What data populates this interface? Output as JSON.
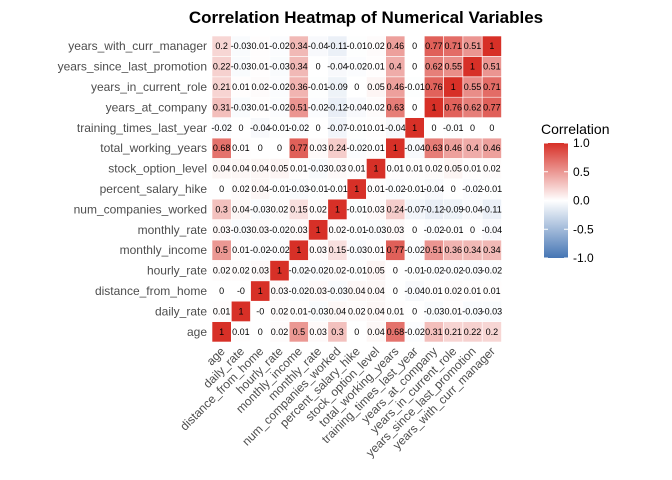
{
  "chart_data": {
    "type": "heatmap",
    "title": "Correlation Heatmap of Numerical Variables",
    "variables": [
      "age",
      "daily_rate",
      "distance_from_home",
      "hourly_rate",
      "monthly_income",
      "monthly_rate",
      "num_companies_worked",
      "percent_salary_hike",
      "stock_option_level",
      "total_working_years",
      "training_times_last_year",
      "years_at_company",
      "years_in_current_role",
      "years_since_last_promotion",
      "years_with_curr_manager"
    ],
    "matrix": [
      [
        1,
        0.01,
        0,
        0.02,
        0.5,
        0.03,
        0.3,
        0,
        0.04,
        0.68,
        -0.02,
        0.31,
        0.21,
        0.22,
        0.2
      ],
      [
        0.01,
        1,
        -0.0,
        0.02,
        0.01,
        -0.03,
        0.04,
        0.02,
        0.04,
        0.01,
        0,
        -0.03,
        0.01,
        -0.03,
        -0.03
      ],
      [
        0,
        -0.0,
        1,
        0.03,
        -0.02,
        0.03,
        -0.03,
        0.04,
        0.04,
        0,
        -0.04,
        0.01,
        0.02,
        0.01,
        0.01
      ],
      [
        0.02,
        0.02,
        0.03,
        1,
        -0.02,
        -0.02,
        0.02,
        -0.01,
        0.05,
        0,
        -0.01,
        -0.02,
        -0.02,
        -0.03,
        -0.02
      ],
      [
        0.5,
        0.01,
        -0.02,
        -0.02,
        1,
        0.03,
        0.15,
        -0.03,
        0.01,
        0.77,
        -0.02,
        0.51,
        0.36,
        0.34,
        0.34
      ],
      [
        0.03,
        -0.03,
        0.03,
        -0.02,
        0.03,
        1,
        0.02,
        -0.01,
        -0.03,
        0.03,
        0,
        -0.02,
        -0.01,
        0,
        -0.04
      ],
      [
        0.3,
        0.04,
        -0.03,
        0.02,
        0.15,
        0.02,
        1,
        -0.01,
        0.03,
        0.24,
        -0.07,
        -0.12,
        -0.09,
        -0.04,
        -0.11
      ],
      [
        0,
        0.02,
        0.04,
        -0.01,
        -0.03,
        -0.01,
        -0.01,
        1,
        0.01,
        -0.02,
        -0.01,
        -0.04,
        0,
        -0.02,
        -0.01
      ],
      [
        0.04,
        0.04,
        0.04,
        0.05,
        0.01,
        -0.03,
        0.03,
        0.01,
        1,
        0.01,
        0.01,
        0.02,
        0.05,
        0.01,
        0.02
      ],
      [
        0.68,
        0.01,
        0,
        0,
        0.77,
        0.03,
        0.24,
        -0.02,
        0.01,
        1,
        -0.04,
        0.63,
        0.46,
        0.4,
        0.46
      ],
      [
        -0.02,
        0,
        -0.04,
        -0.01,
        -0.02,
        0,
        -0.07,
        -0.01,
        0.01,
        -0.04,
        1,
        0,
        -0.01,
        0,
        0
      ],
      [
        0.31,
        -0.03,
        0.01,
        -0.02,
        0.51,
        -0.02,
        -0.12,
        -0.04,
        0.02,
        0.63,
        0,
        1,
        0.76,
        0.62,
        0.77
      ],
      [
        0.21,
        0.01,
        0.02,
        -0.02,
        0.36,
        -0.01,
        -0.09,
        0,
        0.05,
        0.46,
        -0.01,
        0.76,
        1,
        0.55,
        0.71
      ],
      [
        0.22,
        -0.03,
        0.01,
        -0.03,
        0.34,
        0,
        -0.04,
        -0.02,
        0.01,
        0.4,
        0,
        0.62,
        0.55,
        1,
        0.51
      ],
      [
        0.2,
        -0.03,
        0.01,
        -0.02,
        0.34,
        -0.04,
        -0.11,
        -0.01,
        0.02,
        0.46,
        0,
        0.77,
        0.71,
        0.51,
        1
      ]
    ],
    "display_labels": [
      [
        "1",
        "0.01",
        "0",
        "0.02",
        "0.5",
        "0.03",
        "0.3",
        "0",
        "0.04",
        "0.68",
        "-0.02",
        "0.31",
        "0.21",
        "0.22",
        "0.2"
      ],
      [
        "0.01",
        "1",
        "-0",
        "0.02",
        "0.01",
        "-0.03",
        "0.04",
        "0.02",
        "0.04",
        "0.01",
        "0",
        "-0.03",
        "0.01",
        "-0.03",
        "-0.03"
      ],
      [
        "0",
        "-0",
        "1",
        "0.03",
        "-0.02",
        "0.03",
        "-0.03",
        "0.04",
        "0.04",
        "0",
        "-0.04",
        "0.01",
        "0.02",
        "0.01",
        "0.01"
      ],
      [
        "0.02",
        "0.02",
        "0.03",
        "1",
        "-0.02",
        "-0.02",
        "0.02",
        "-0.01",
        "0.05",
        "0",
        "-0.01",
        "-0.02",
        "-0.02",
        "-0.03",
        "-0.02"
      ],
      [
        "0.5",
        "0.01",
        "-0.02",
        "-0.02",
        "1",
        "0.03",
        "0.15",
        "-0.03",
        "0.01",
        "0.77",
        "-0.02",
        "0.51",
        "0.36",
        "0.34",
        "0.34"
      ],
      [
        "0.03",
        "-0.03",
        "0.03",
        "-0.02",
        "0.03",
        "1",
        "0.02",
        "-0.01",
        "-0.03",
        "0.03",
        "0",
        "-0.02",
        "-0.01",
        "0",
        "-0.04"
      ],
      [
        "0.3",
        "0.04",
        "-0.03",
        "0.02",
        "0.15",
        "0.02",
        "1",
        "-0.01",
        "0.03",
        "0.24",
        "-0.07",
        "-0.12",
        "-0.09",
        "-0.04",
        "-0.11"
      ],
      [
        "0",
        "0.02",
        "0.04",
        "-0.01",
        "-0.03",
        "-0.01",
        "-0.01",
        "1",
        "0.01",
        "-0.02",
        "-0.01",
        "-0.04",
        "0",
        "-0.02",
        "-0.01"
      ],
      [
        "0.04",
        "0.04",
        "0.04",
        "0.05",
        "0.01",
        "-0.03",
        "0.03",
        "0.01",
        "1",
        "0.01",
        "0.01",
        "0.02",
        "0.05",
        "0.01",
        "0.02"
      ],
      [
        "0.68",
        "0.01",
        "0",
        "0",
        "0.77",
        "0.03",
        "0.24",
        "-0.02",
        "0.01",
        "1",
        "-0.04",
        "0.63",
        "0.46",
        "0.4",
        "0.46"
      ],
      [
        "-0.02",
        "0",
        "-0.04",
        "-0.01",
        "-0.02",
        "0",
        "-0.07",
        "-0.01",
        "0.01",
        "-0.04",
        "1",
        "0",
        "-0.01",
        "0",
        "0"
      ],
      [
        "0.31",
        "-0.03",
        "0.01",
        "-0.02",
        "0.51",
        "-0.02",
        "-0.12",
        "-0.04",
        "0.02",
        "0.63",
        "0",
        "1",
        "0.76",
        "0.62",
        "0.77"
      ],
      [
        "0.21",
        "0.01",
        "0.02",
        "-0.02",
        "0.36",
        "-0.01",
        "-0.09",
        "0",
        "0.05",
        "0.46",
        "-0.01",
        "0.76",
        "1",
        "0.55",
        "0.71"
      ],
      [
        "0.22",
        "-0.03",
        "0.01",
        "-0.03",
        "0.34",
        "0",
        "-0.04",
        "-0.02",
        "0.01",
        "0.4",
        "0",
        "0.62",
        "0.55",
        "1",
        "0.51"
      ],
      [
        "0.2",
        "-0.03",
        "0.01",
        "-0.02",
        "0.34",
        "-0.04",
        "-0.11",
        "-0.01",
        "0.02",
        "0.46",
        "0",
        "0.77",
        "0.71",
        "0.51",
        "1"
      ]
    ],
    "color_scale": {
      "low": "#4575b4",
      "mid": "#ffffff",
      "high": "#d73027",
      "min": -1,
      "max": 1
    },
    "legend": {
      "title": "Correlation",
      "ticks": [
        "1.0",
        "0.5",
        "0.0",
        "-0.5",
        "-1.0"
      ],
      "tick_values": [
        1,
        0.5,
        0,
        -0.5,
        -1
      ],
      "placement": "right"
    },
    "grid": false
  }
}
